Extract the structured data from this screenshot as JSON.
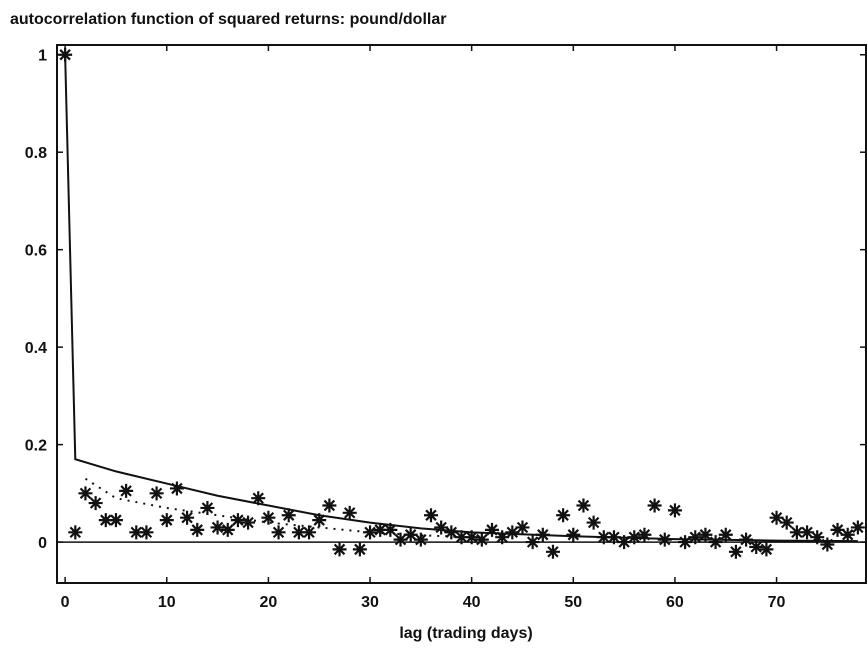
{
  "chart_data": {
    "type": "scatter",
    "title": "autocorrelation function of squared returns: pound/dollar",
    "x_label": "lag (trading days)",
    "xlim": [
      -0.8,
      78.8
    ],
    "ylim": [
      -0.084,
      1.02
    ],
    "xticks": [
      0,
      10,
      20,
      30,
      40,
      50,
      60,
      70
    ],
    "yticks": [
      0,
      0.2,
      0.4,
      0.6,
      0.8,
      1
    ],
    "hline": 0,
    "series": [
      {
        "style": "star",
        "color": "#111",
        "x": [
          0,
          1,
          2,
          3,
          4,
          5,
          6,
          7,
          8,
          9,
          10,
          11,
          12,
          13,
          14,
          15,
          16,
          17,
          18,
          19,
          20,
          21,
          22,
          23,
          24,
          25,
          26,
          27,
          28,
          29,
          30,
          31,
          32,
          33,
          34,
          35,
          36,
          37,
          38,
          39,
          40,
          41,
          42,
          43,
          44,
          45,
          46,
          47,
          48,
          49,
          50,
          51,
          52,
          53,
          54,
          55,
          56,
          57,
          58,
          59,
          60,
          61,
          62,
          63,
          64,
          65,
          66,
          67,
          68,
          69,
          70,
          71,
          72,
          73,
          74,
          75,
          76,
          77,
          78
        ],
        "values": [
          1,
          0.02,
          0.1,
          0.08,
          0.045,
          0.045,
          0.105,
          0.02,
          0.02,
          0.1,
          0.045,
          0.11,
          0.05,
          0.025,
          0.07,
          0.03,
          0.025,
          0.045,
          0.04,
          0.09,
          0.05,
          0.02,
          0.055,
          0.02,
          0.02,
          0.045,
          0.075,
          -0.015,
          0.06,
          -0.015,
          0.02,
          0.025,
          0.025,
          0.005,
          0.015,
          0.005,
          0.055,
          0.03,
          0.02,
          0.01,
          0.01,
          0.005,
          0.025,
          0.01,
          0.02,
          0.03,
          0,
          0.015,
          -0.02,
          0.055,
          0.015,
          0.075,
          0.04,
          0.01,
          0.01,
          0,
          0.01,
          0.015,
          0.075,
          0.005,
          0.065,
          0,
          0.01,
          0.015,
          0,
          0.015,
          -0.02,
          0.005,
          -0.01,
          -0.015,
          0.05,
          0.04,
          0.02,
          0.02,
          0.01,
          -0.005,
          0.025,
          0.015,
          0.03
        ]
      },
      {
        "style": "solid",
        "color": "#111",
        "x": [
          0,
          1,
          5,
          10,
          15,
          20,
          25,
          30,
          35,
          40,
          50,
          60,
          70,
          78
        ],
        "values": [
          1,
          0.17,
          0.145,
          0.12,
          0.095,
          0.075,
          0.055,
          0.04,
          0.028,
          0.02,
          0.012,
          0.006,
          0.003,
          0.002
        ]
      },
      {
        "style": "dotted",
        "color": "#111",
        "x": [
          2,
          5,
          10,
          15,
          20,
          25,
          30,
          35,
          40
        ],
        "values": [
          0.13,
          0.09,
          0.07,
          0.055,
          0.04,
          0.03,
          0.02,
          0.014,
          0.01
        ]
      }
    ]
  }
}
